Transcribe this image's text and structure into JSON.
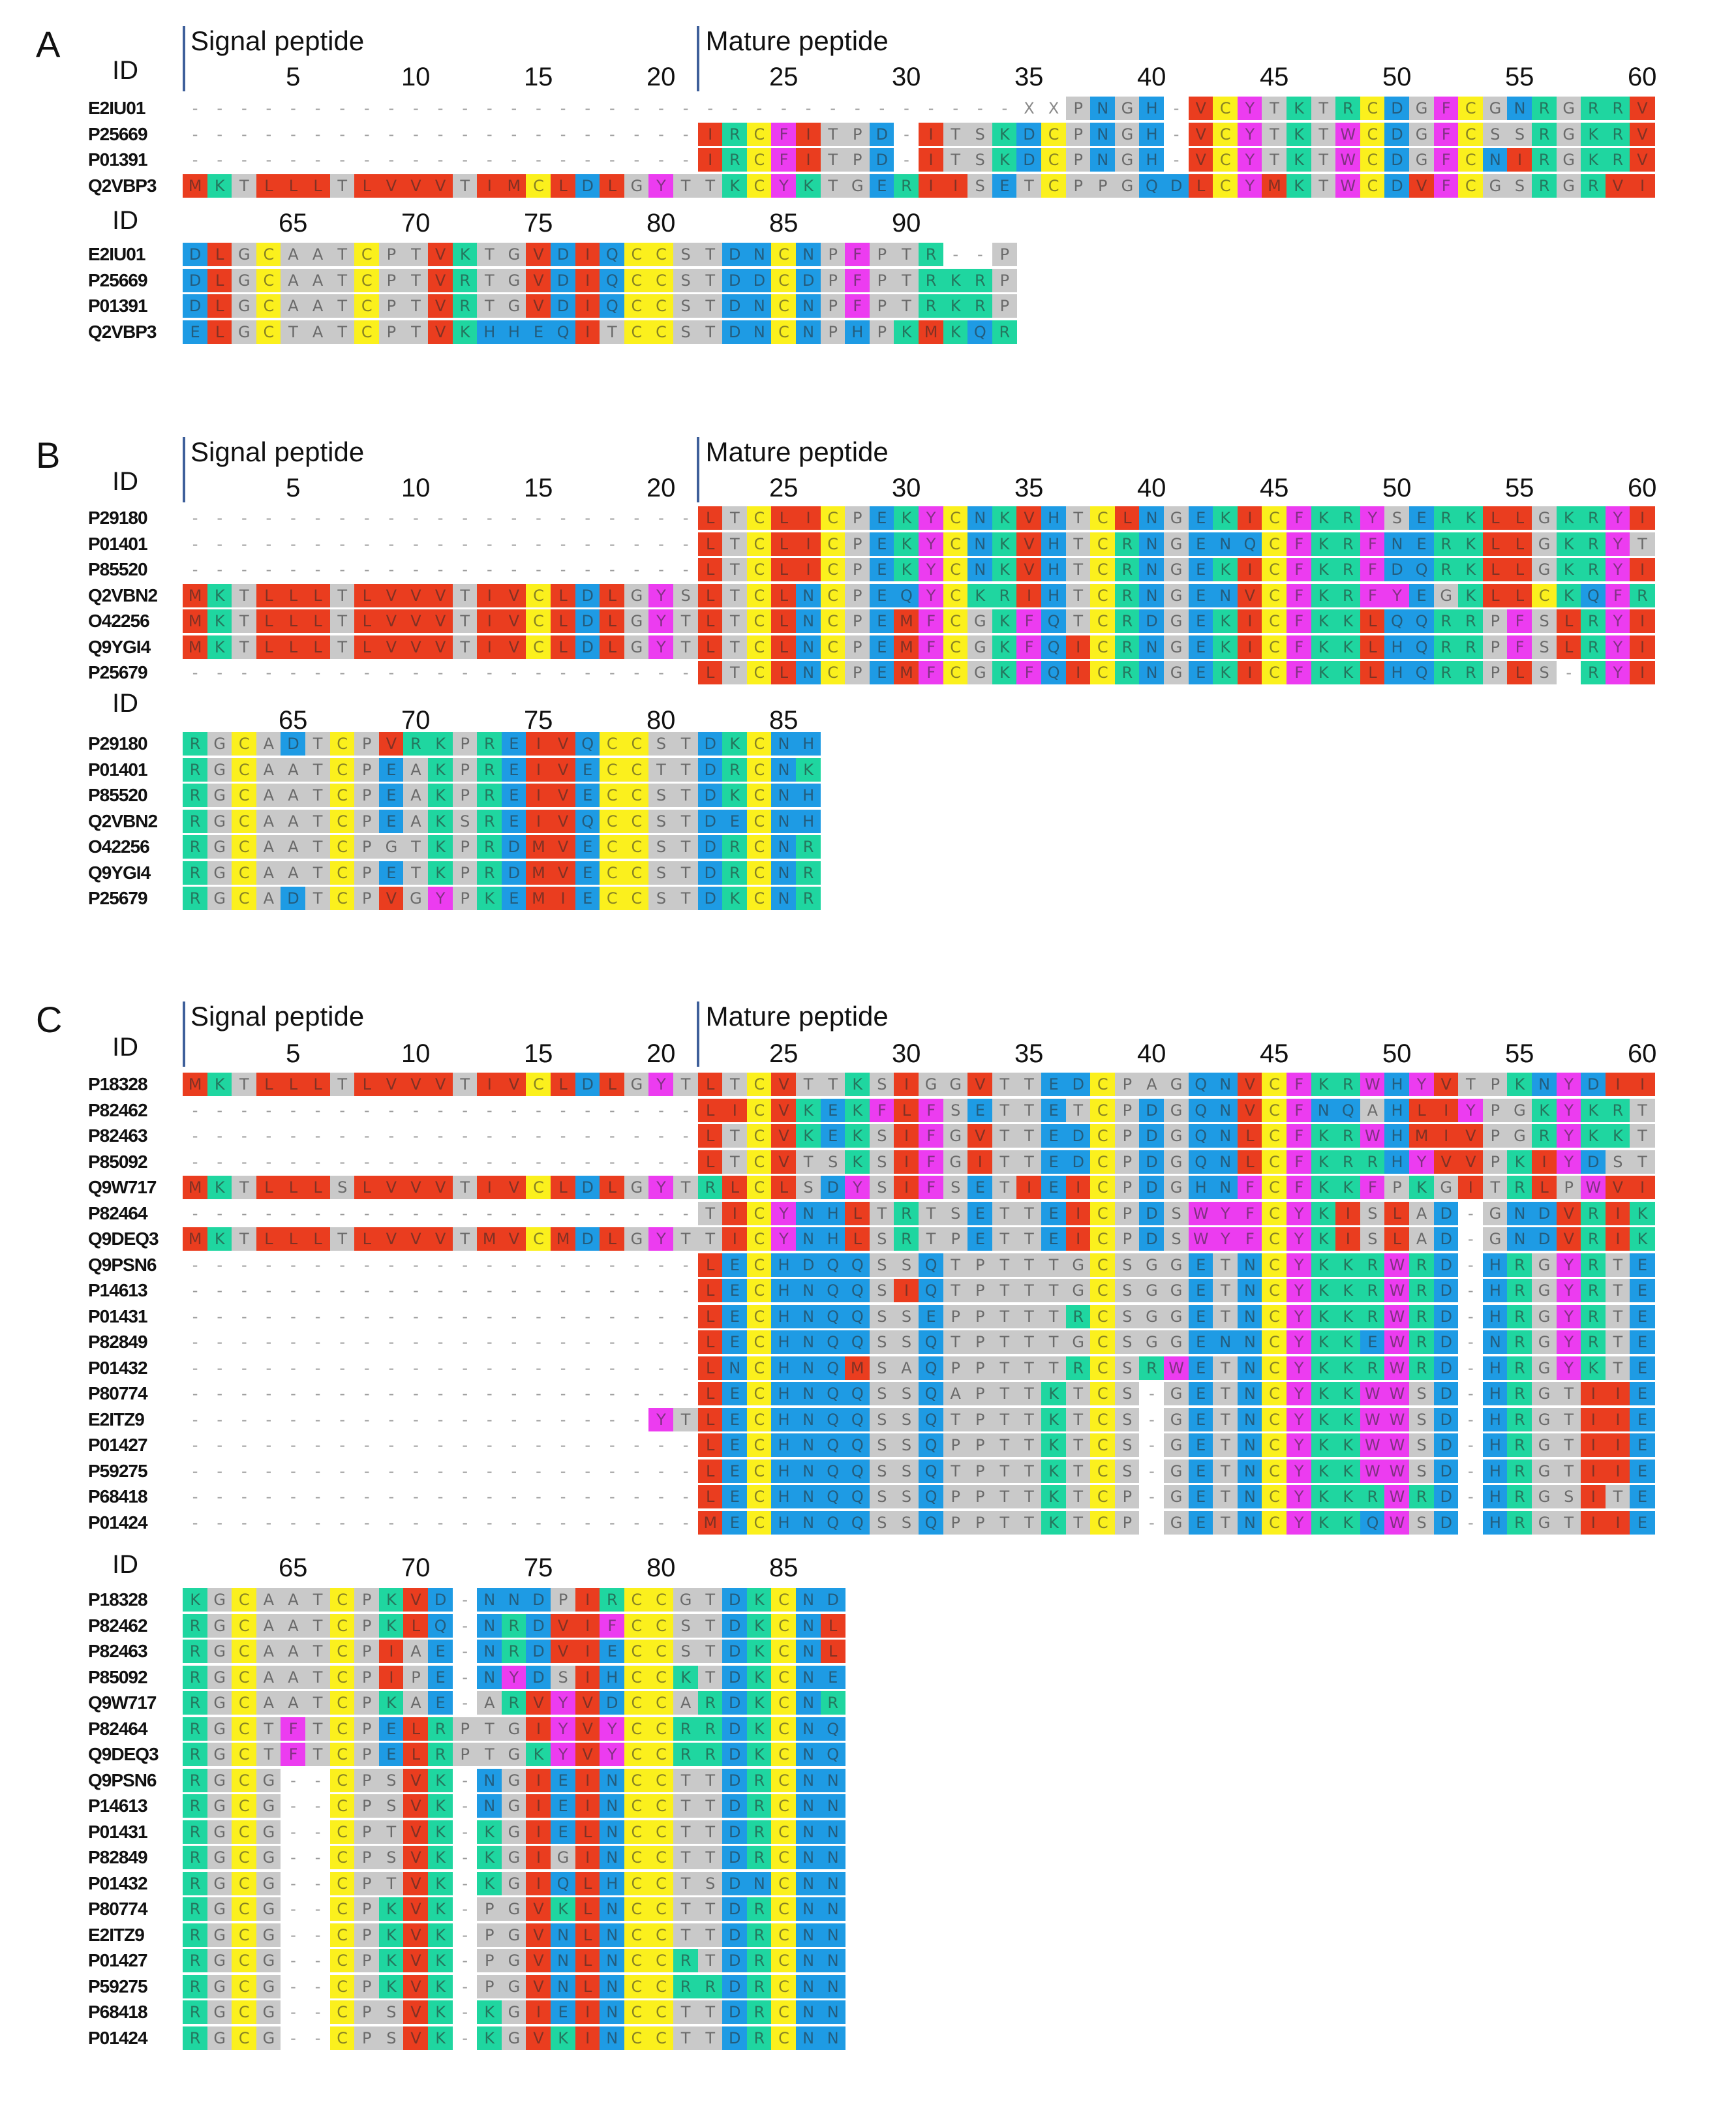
{
  "colors": {
    "R": "#1fd6a0",
    "K": "#1fd6a0",
    "D": "#1e9be4",
    "E": "#1e9be4",
    "Q": "#1e9be4",
    "N": "#1e9be4",
    "C": "#fbf01d",
    "H": "#1e9be4",
    "Y": "#ec3cf0",
    "F": "#ec3cf0",
    "W": "#ec3cf0",
    "L": "#ea3d1f",
    "I": "#ea3d1f",
    "V": "#ea3d1f",
    "M": "#ea3d1f",
    "G": "#c9c9c9",
    "S": "#c9c9c9",
    "T": "#c9c9c9",
    "A": "#c9c9c9",
    "P": "#c9c9c9",
    "X": "#ffffff",
    "-": "#ffffff",
    " ": "#ffffff"
  },
  "labels": {
    "id": "ID",
    "signal": "Signal peptide",
    "mature": "Mature peptide"
  },
  "panels": [
    {
      "label": "A",
      "ticks1": [
        "5",
        "10",
        "15",
        "20",
        "25",
        "30",
        "35",
        "40",
        "45",
        "50",
        "55",
        "60"
      ],
      "ticks2": [
        "65",
        "70",
        "75",
        "80",
        "85",
        "90"
      ],
      "rows1": [
        {
          "id": "E2IU01",
          "seq": "----------------------------------XXPNGH-VCYTKTRCDGFCGNRGRRV"
        },
        {
          "id": "P25669",
          "seq": "---------------------IRCFITPD-ITSKDCPNGH-VCYTKTWCDGFCSSRGKRV"
        },
        {
          "id": "P01391",
          "seq": "---------------------IRCFITPD-ITSKDCPNGH-VCYTKTWCDGFCNIRGKRV"
        },
        {
          "id": "Q2VBP3",
          "seq": "MKTLLLTLVVVTIMCLDLGYTTKCYKTGERIISETCPPGQDLCYMKTWCDVFCGSRGRVI"
        }
      ],
      "rows2": [
        {
          "id": "E2IU01",
          "seq": "DLGCAATCPTVKTGVDIQCCSTDNCNPFPTR--P"
        },
        {
          "id": "P25669",
          "seq": "DLGCAATCPTVRTGVDIQCCSTDDCDPFPTRKRP"
        },
        {
          "id": "P01391",
          "seq": "DLGCAATCPTVRTGVDIQCCSTDNCNPFPTRKRP"
        },
        {
          "id": "Q2VBP3",
          "seq": "ELGCTATCPTVKHHEQITCCSTDNCNPHPKMKQR"
        }
      ]
    },
    {
      "label": "B",
      "ticks1": [
        "5",
        "10",
        "15",
        "20",
        "25",
        "30",
        "35",
        "40",
        "45",
        "50",
        "55",
        "60"
      ],
      "ticks2": [
        "65",
        "70",
        "75",
        "80",
        "85"
      ],
      "rows1": [
        {
          "id": "P29180",
          "seq": "---------------------LTCLICPEKYCNKVHTCLNGEKICFKRYSERKLLGKRYI"
        },
        {
          "id": "P01401",
          "seq": "---------------------LTCLICPEKYCNKVHTCRNGENQCFKRFNERKLLGKRYT"
        },
        {
          "id": "P85520",
          "seq": "---------------------LTCLICPEKYCNKVHTCRNGEKICFKRFDQRKLLGKRYI"
        },
        {
          "id": "Q2VBN2",
          "seq": "MKTLLLTLVVVTIVCLDLGYSLTCLNCPEQYCKRIHTCRNGENVCFKRFYEGKLLCKQFR"
        },
        {
          "id": "O42256",
          "seq": "MKTLLLTLVVVTIVCLDLGYTLTCLNCPEMFCGKFQTCRDGEKICFKKLQQRRPFSLRYI"
        },
        {
          "id": "Q9YGI4",
          "seq": "MKTLLLTLVVVTIVCLDLGYTLTCLNCPEMFCGKFQICRNGEKICFKKLHQRRPFSLRYI"
        },
        {
          "id": "P25679",
          "seq": "---------------------LTCLNCPEMFCGKFQICRNGEKICFKKLHQRRPLS-RYI"
        }
      ],
      "rows2": [
        {
          "id": "P29180",
          "seq": "RGCADTCPVRKPREIVQCCSTDKCNH"
        },
        {
          "id": "P01401",
          "seq": "RGCAATCPEAKPREIVECCTTDRCNK"
        },
        {
          "id": "P85520",
          "seq": "RGCAATCPEAKPREIVECCSTDKCNH"
        },
        {
          "id": "Q2VBN2",
          "seq": "RGCAATCPEAKSREIVQCCSTDECNH"
        },
        {
          "id": "O42256",
          "seq": "RGCAATCPGTKPRDMVECCSTDRCNR"
        },
        {
          "id": "Q9YGI4",
          "seq": "RGCAATCPETKPRDMVECCSTDRCNR"
        },
        {
          "id": "P25679",
          "seq": "RGCADTCPVGYPKEMIECCSTDKCNR"
        }
      ]
    },
    {
      "label": "C",
      "ticks1": [
        "5",
        "10",
        "15",
        "20",
        "25",
        "30",
        "35",
        "40",
        "45",
        "50",
        "55",
        "60"
      ],
      "ticks2": [
        "65",
        "70",
        "75",
        "80",
        "85"
      ],
      "rows1": [
        {
          "id": "P18328",
          "seq": "MKTLLLTLVVVTIVCLDLGYTLTCVTTKSIGGVTTEDCPAGQNVCFKRWHYVTPKNYDII"
        },
        {
          "id": "P82462",
          "seq": "---------------------LICVKEKFLFSETTETCPDGQNVCFNQAHLIYPGKYKRT"
        },
        {
          "id": "P82463",
          "seq": "---------------------LTCVKEKSIFGVTTEDCPDGQNLCFKRWHMIVPGRYKKT"
        },
        {
          "id": "P85092",
          "seq": "---------------------LTCVTSKSIFGITTEDCPDGQNLCFKRRHYVVPKIYDST"
        },
        {
          "id": "Q9W717",
          "seq": "MKTLLLSLVVVTIVCLDLGYTRLCLSDYSIFSETIEICPDGHNFCFKKFPKGITRLPWVI"
        },
        {
          "id": "P82464",
          "seq": "---------------------TICYNHLTRTSETTEICPDSWYFCYKISLAD-GNDVRIK"
        },
        {
          "id": "Q9DEQ3",
          "seq": "MKTLLLTLVVVTMVCMDLGYTTICYNHLSRTPETTEICPDSWYFCYKISLAD-GNDVRIK"
        },
        {
          "id": "Q9PSN6",
          "seq": "---------------------LECHDQQSSQTPTTTGCSGGETNCYKKRWRD-HRGYRTE"
        },
        {
          "id": "P14613",
          "seq": "---------------------LECHNQQSIQTPTTTGCSGGETNCYKKRWRD-HRGYRTE"
        },
        {
          "id": "P01431",
          "seq": "---------------------LECHNQQSSEPPTTTRCSGGETNCYKKRWRD-HRGYRTE"
        },
        {
          "id": "P82849",
          "seq": "---------------------LECHNQQSSQTPTTTGCSGGENNCYKKEWRD-NRGYRTE"
        },
        {
          "id": "P01432",
          "seq": "---------------------LNCHNQMSAQPPTTTRCSRWETNCYKKRWRD-HRGYKTE"
        },
        {
          "id": "P80774",
          "seq": "---------------------LECHNQQSSQAPTTKTCS-GETNCYKKWWSD-HRGTIIE"
        },
        {
          "id": "E2ITZ9",
          "seq": "-------------------YTLECHNQQSSQTPTTKTCS-GETNCYKKWWSD-HRGTIIE"
        },
        {
          "id": "P01427",
          "seq": "---------------------LECHNQQSSQPPTTKTCS-GETNCYKKWWSD-HRGTIIE"
        },
        {
          "id": "P59275",
          "seq": "---------------------LECHNQQSSQTPTTKTCS-GETNCYKKWWSD-HRGTIIE"
        },
        {
          "id": "P68418",
          "seq": "---------------------LECHNQQSSQPPTTKTCP-GETNCYKKRWRD-HRGSITE"
        },
        {
          "id": "P01424",
          "seq": "---------------------MECHNQQSSQPPTTKTCP-GETNCYKKQWSD-HRGTIIE"
        }
      ],
      "rows2": [
        {
          "id": "P18328",
          "seq": "KGCAATCPKVD-NNDPIRCCGTDKCND"
        },
        {
          "id": "P82462",
          "seq": "RGCAATCPKLQ-NRDVIFCCSTDKCNL"
        },
        {
          "id": "P82463",
          "seq": "RGCAATCPIAE-NRDVIECCSTDKCNL"
        },
        {
          "id": "P85092",
          "seq": "RGCAATCPIPE-NYDSIHCCKTDKCNE"
        },
        {
          "id": "Q9W717",
          "seq": "RGCAATCPKAE-ARVYVDCCARDKCNR"
        },
        {
          "id": "P82464",
          "seq": "RGCTFTCPELRPTGIYVYCCRRDKCNQ"
        },
        {
          "id": "Q9DEQ3",
          "seq": "RGCTFTCPELRPTGKYVYCCRRDKCNQ"
        },
        {
          "id": "Q9PSN6",
          "seq": "RGCG--CPSVK-NGIEINCCTTDRCNN"
        },
        {
          "id": "P14613",
          "seq": "RGCG--CPSVK-NGIEINCCTTDRCNN"
        },
        {
          "id": "P01431",
          "seq": "RGCG--CPTVK-KGIELNCCTTDRCNN"
        },
        {
          "id": "P82849",
          "seq": "RGCG--CPSVK-KGIGINCCTTDRCNN"
        },
        {
          "id": "P01432",
          "seq": "RGCG--CPTVK-KGIQLHCCTSDNCNN"
        },
        {
          "id": "P80774",
          "seq": "RGCG--CPKVK-PGVKLNCCTTDRCNN"
        },
        {
          "id": "E2ITZ9",
          "seq": "RGCG--CPKVK-PGVNLNCCTTDRCNN"
        },
        {
          "id": "P01427",
          "seq": "RGCG--CPKVK-PGVNLNCCRTDRCNN"
        },
        {
          "id": "P59275",
          "seq": "RGCG--CPKVK-PGVNLNCCRRDRCNN"
        },
        {
          "id": "P68418",
          "seq": "RGCG--CPSVK-KGIEINCCTTDRCNN"
        },
        {
          "id": "P01424",
          "seq": "RGCG--CPSVK-KGVKINCCTTDRCNN"
        }
      ]
    }
  ]
}
